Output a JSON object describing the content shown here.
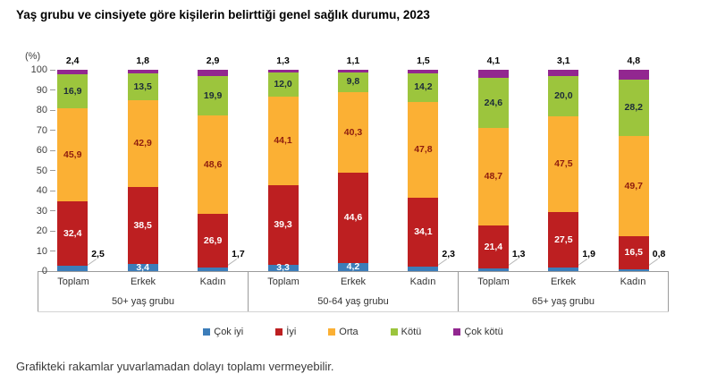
{
  "page": {
    "title": "Yaş grubu ve cinsiyete göre kişilerin belirttiği genel sağlık durumu, 2023",
    "footnote": "Grafikteki rakamlar yuvarlamadan dolayı toplamı vermeyebilir."
  },
  "chart_data": {
    "type": "bar",
    "variant": "stacked-column",
    "title": "Yaş grubu ve cinsiyete göre kişilerin belirttiği genel sağlık durumu, 2023",
    "unit_label": "(%)",
    "ylim": [
      0,
      100
    ],
    "yticks": [
      0,
      10,
      20,
      30,
      40,
      50,
      60,
      70,
      80,
      90,
      100
    ],
    "grid": false,
    "legend_position": "bottom",
    "series": [
      {
        "name": "Çok iyi",
        "color": "#3C7DB9",
        "label_color": "#ffffff",
        "label_placement": "inside-or-callout",
        "callout_below": 3.0
      },
      {
        "name": "İyi",
        "color": "#BD1F21",
        "label_color": "#ffffff",
        "label_placement": "inside"
      },
      {
        "name": "Orta",
        "color": "#FBB034",
        "label_color": "#8E1C0E",
        "label_placement": "inside"
      },
      {
        "name": "Kötü",
        "color": "#9CC53D",
        "label_color": "#1C2B3A",
        "label_placement": "inside"
      },
      {
        "name": "Çok kötü",
        "color": "#922790",
        "label_color": "#000000",
        "label_placement": "above"
      }
    ],
    "groups": [
      {
        "label": "50+ yaş grubu",
        "bars": [
          {
            "category": "Toplam",
            "values": [
              2.5,
              32.4,
              45.9,
              16.9,
              2.4
            ],
            "labels": [
              "2,5",
              "32,4",
              "45,9",
              "16,9",
              "2,4"
            ]
          },
          {
            "category": "Erkek",
            "values": [
              3.4,
              38.5,
              42.9,
              13.5,
              1.8
            ],
            "labels": [
              "3,4",
              "38,5",
              "42,9",
              "13,5",
              "1,8"
            ]
          },
          {
            "category": "Kadın",
            "values": [
              1.7,
              26.9,
              48.6,
              19.9,
              2.9
            ],
            "labels": [
              "1,7",
              "26,9",
              "48,6",
              "19,9",
              "2,9"
            ]
          }
        ]
      },
      {
        "label": "50-64 yaş grubu",
        "bars": [
          {
            "category": "Toplam",
            "values": [
              3.3,
              39.3,
              44.1,
              12.0,
              1.3
            ],
            "labels": [
              "3,3",
              "39,3",
              "44,1",
              "12,0",
              "1,3"
            ]
          },
          {
            "category": "Erkek",
            "values": [
              4.2,
              44.6,
              40.3,
              9.8,
              1.1
            ],
            "labels": [
              "4,2",
              "44,6",
              "40,3",
              "9,8",
              "1,1"
            ]
          },
          {
            "category": "Kadın",
            "values": [
              2.3,
              34.1,
              47.8,
              14.2,
              1.5
            ],
            "labels": [
              "2,3",
              "34,1",
              "47,8",
              "14,2",
              "1,5"
            ]
          }
        ]
      },
      {
        "label": "65+ yaş grubu",
        "bars": [
          {
            "category": "Toplam",
            "values": [
              1.3,
              21.4,
              48.7,
              24.6,
              4.1
            ],
            "labels": [
              "1,3",
              "21,4",
              "48,7",
              "24,6",
              "4,1"
            ]
          },
          {
            "category": "Erkek",
            "values": [
              1.9,
              27.5,
              47.5,
              20.0,
              3.1
            ],
            "labels": [
              "1,9",
              "27,5",
              "47,5",
              "20,0",
              "3,1"
            ]
          },
          {
            "category": "Kadın",
            "values": [
              0.8,
              16.5,
              49.7,
              28.2,
              4.8
            ],
            "labels": [
              "0,8",
              "16,5",
              "49,7",
              "28,2",
              "4,8"
            ]
          }
        ]
      }
    ]
  }
}
